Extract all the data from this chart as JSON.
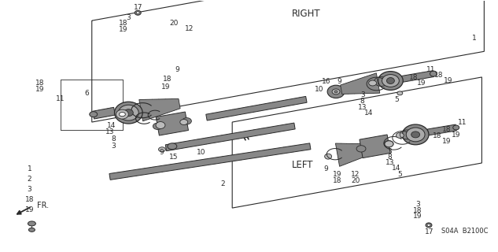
{
  "bg_color": "#ffffff",
  "diagram_code": "S04A  B2100C",
  "right_label": "RIGHT",
  "left_label": "LEFT",
  "fr_label": "FR.",
  "line_color": "#2a2a2a",
  "gray_dark": "#444444",
  "gray_mid": "#777777",
  "gray_light": "#aaaaaa",
  "gray_fill": "#888888",
  "font_size": 6.5
}
